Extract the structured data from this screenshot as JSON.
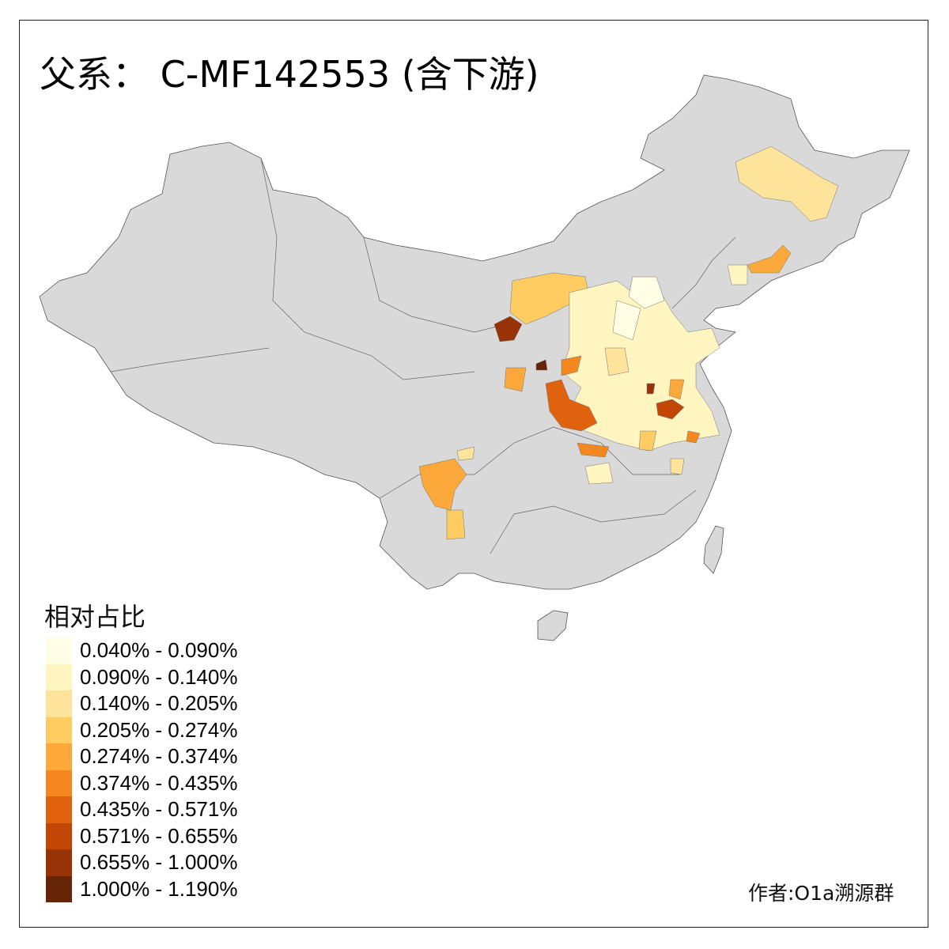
{
  "title": "父系： C-MF142553 (含下游)",
  "legend": {
    "title": "相对占比",
    "items": [
      {
        "label": "0.040% - 0.090%",
        "color": "#FFFDE4"
      },
      {
        "label": "0.090% - 0.140%",
        "color": "#FFF5C0"
      },
      {
        "label": "0.140% - 0.205%",
        "color": "#FEE49A"
      },
      {
        "label": "0.205% - 0.274%",
        "color": "#FECC60"
      },
      {
        "label": "0.274% - 0.374%",
        "color": "#FDA83A"
      },
      {
        "label": "0.374% - 0.435%",
        "color": "#F4871F"
      },
      {
        "label": "0.435% - 0.571%",
        "color": "#E0620F"
      },
      {
        "label": "0.571% - 0.655%",
        "color": "#C24706"
      },
      {
        "label": "0.655% - 1.000%",
        "color": "#973306"
      },
      {
        "label": "1.000% - 1.190%",
        "color": "#662506"
      }
    ]
  },
  "credit": "作者:O1a溯源群",
  "colors": {
    "no_data": "#D9D9D9",
    "border": "#555555"
  }
}
